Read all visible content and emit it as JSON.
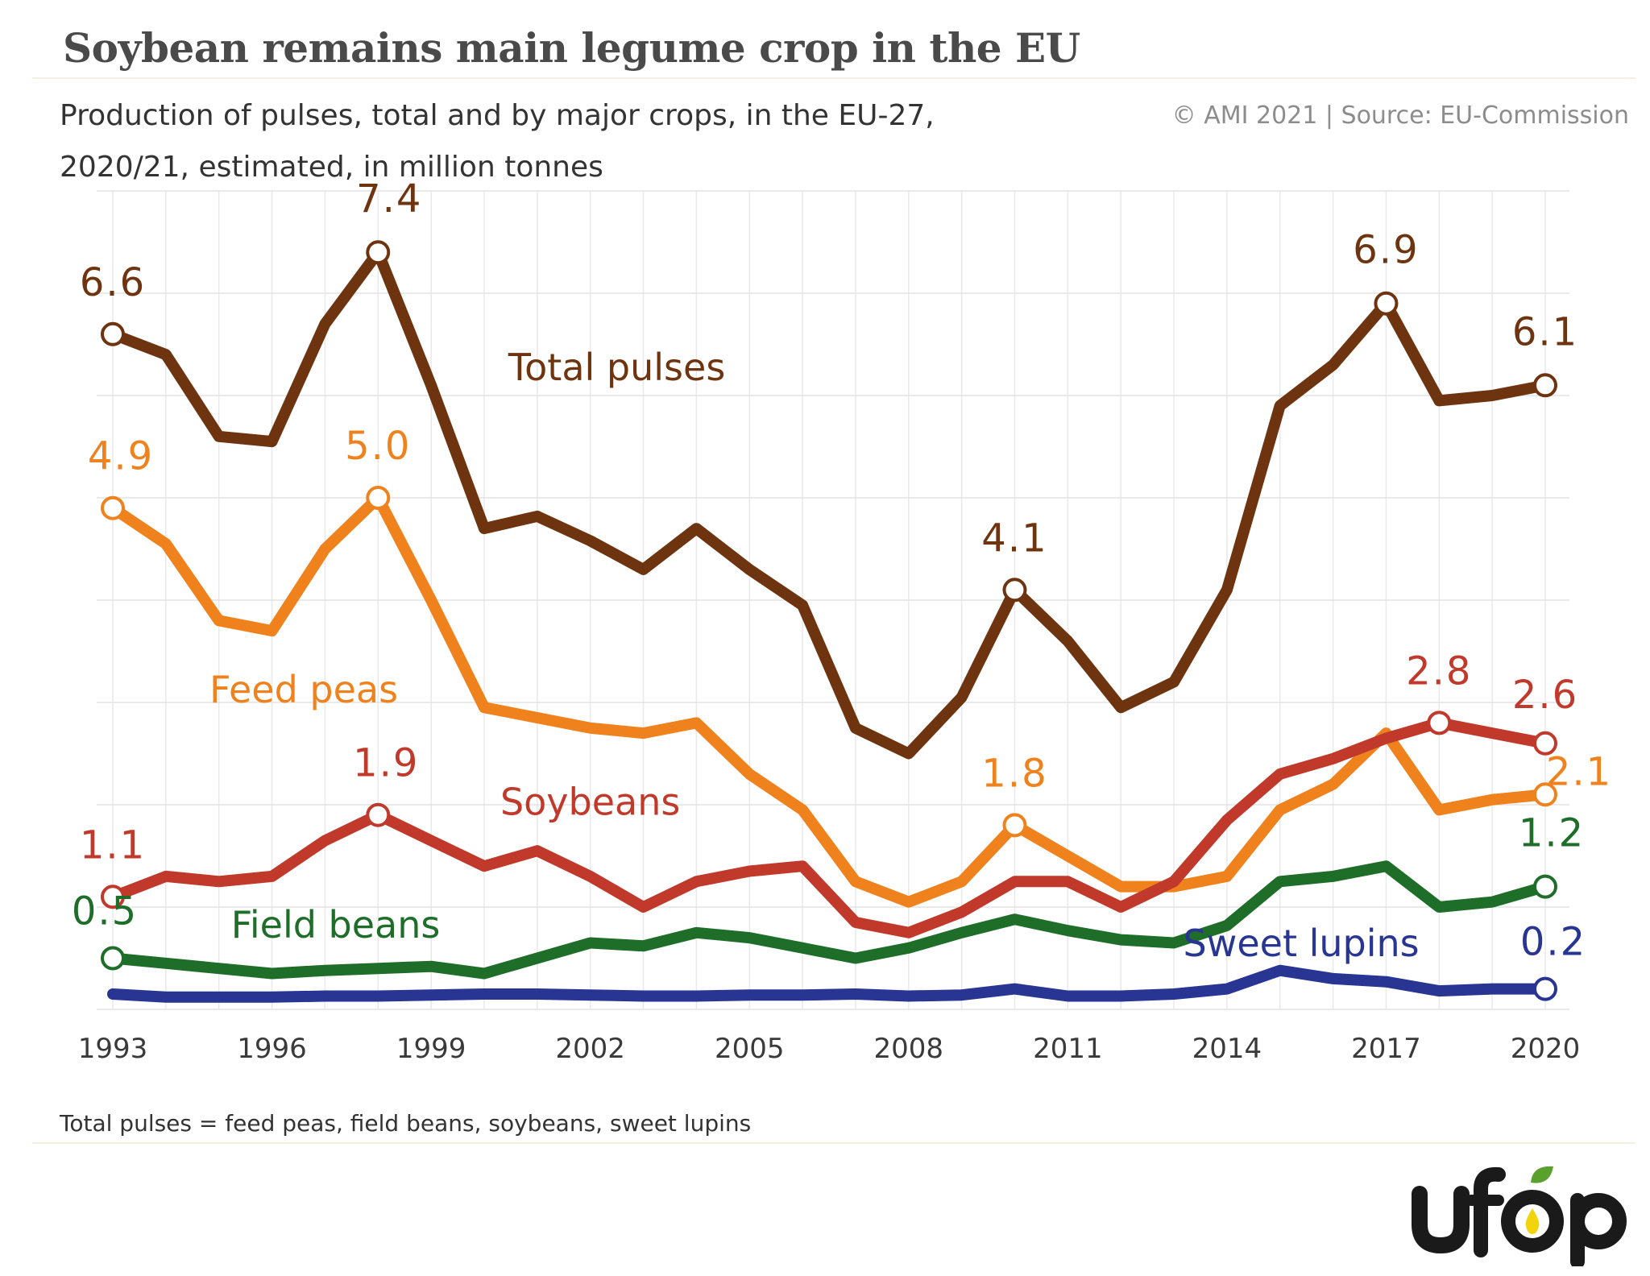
{
  "chart_data": {
    "type": "line",
    "title": "Soybean remains main legume crop in the EU",
    "subtitle": "Production of pulses, total and by major crops, in the EU-27, 2020/21, estimated, in million tonnes",
    "source": "© AMI 2021 | Source: EU-Commission",
    "footnote": "Total pulses = feed peas, field beans, soybeans, sweet lupins",
    "grid": true,
    "xlim": [
      1993,
      2020
    ],
    "ylim": [
      0,
      8
    ],
    "x": [
      1993,
      1994,
      1995,
      1996,
      1997,
      1998,
      1999,
      2000,
      2001,
      2002,
      2003,
      2004,
      2005,
      2006,
      2007,
      2008,
      2009,
      2010,
      2011,
      2012,
      2013,
      2014,
      2015,
      2016,
      2017,
      2018,
      2019,
      2020
    ],
    "x_tick_labels": [
      "1993",
      "1996",
      "1999",
      "2002",
      "2005",
      "2008",
      "2011",
      "2014",
      "2017",
      "2020"
    ],
    "series": [
      {
        "name": "Total pulses",
        "color": "#6e3410",
        "values": [
          6.6,
          6.4,
          5.6,
          5.55,
          6.7,
          7.4,
          6.1,
          4.7,
          4.82,
          4.58,
          4.3,
          4.7,
          4.3,
          3.95,
          2.75,
          2.5,
          3.05,
          4.1,
          3.6,
          2.95,
          3.2,
          4.1,
          5.9,
          6.3,
          6.9,
          5.95,
          6.0,
          6.1
        ],
        "point_labels": [
          {
            "year": 1993,
            "text": "6.6"
          },
          {
            "year": 1998,
            "text": "7.4"
          },
          {
            "year": 2010,
            "text": "4.1"
          },
          {
            "year": 2017,
            "text": "6.9"
          },
          {
            "year": 2020,
            "text": "6.1"
          }
        ]
      },
      {
        "name": "Feed peas",
        "color": "#f0821e",
        "values": [
          4.9,
          4.55,
          3.8,
          3.7,
          4.5,
          5.0,
          4.0,
          2.95,
          2.85,
          2.75,
          2.7,
          2.8,
          2.3,
          1.95,
          1.25,
          1.05,
          1.25,
          1.8,
          1.5,
          1.2,
          1.2,
          1.3,
          1.95,
          2.2,
          2.7,
          1.95,
          2.05,
          2.1
        ],
        "point_labels": [
          {
            "year": 1993,
            "text": "4.9"
          },
          {
            "year": 1998,
            "text": "5.0"
          },
          {
            "year": 2010,
            "text": "1.8"
          },
          {
            "year": 2020,
            "text": "2.1"
          }
        ]
      },
      {
        "name": "Soybeans",
        "color": "#c0392b",
        "values": [
          1.1,
          1.3,
          1.25,
          1.3,
          1.65,
          1.9,
          1.65,
          1.4,
          1.55,
          1.3,
          1.0,
          1.25,
          1.35,
          1.4,
          0.85,
          0.75,
          0.95,
          1.25,
          1.25,
          1.0,
          1.25,
          1.85,
          2.3,
          2.45,
          2.65,
          2.8,
          2.7,
          2.6
        ],
        "point_labels": [
          {
            "year": 1993,
            "text": "1.1"
          },
          {
            "year": 1998,
            "text": "1.9"
          },
          {
            "year": 2018,
            "text": "2.8"
          },
          {
            "year": 2020,
            "text": "2.6"
          }
        ]
      },
      {
        "name": "Field beans",
        "color": "#1e6e2a",
        "values": [
          0.5,
          0.45,
          0.4,
          0.35,
          0.38,
          0.4,
          0.42,
          0.35,
          0.5,
          0.65,
          0.62,
          0.75,
          0.7,
          0.6,
          0.5,
          0.6,
          0.75,
          0.88,
          0.77,
          0.68,
          0.65,
          0.82,
          1.25,
          1.3,
          1.4,
          1.0,
          1.05,
          1.2
        ],
        "point_labels": [
          {
            "year": 1993,
            "text": "0.5"
          },
          {
            "year": 2020,
            "text": "1.2"
          }
        ]
      },
      {
        "name": "Sweet lupins",
        "color": "#283593",
        "values": [
          0.15,
          0.12,
          0.12,
          0.12,
          0.13,
          0.13,
          0.14,
          0.15,
          0.15,
          0.14,
          0.13,
          0.13,
          0.14,
          0.14,
          0.15,
          0.13,
          0.14,
          0.2,
          0.13,
          0.13,
          0.15,
          0.2,
          0.38,
          0.3,
          0.27,
          0.18,
          0.2,
          0.2
        ],
        "point_labels": [
          {
            "year": 2020,
            "text": "0.2"
          }
        ]
      }
    ]
  },
  "logo": {
    "text": "ufop",
    "colors": {
      "text": "#1a1a1a",
      "drop": "#f2d40d",
      "leaf": "#5aa02c"
    }
  }
}
